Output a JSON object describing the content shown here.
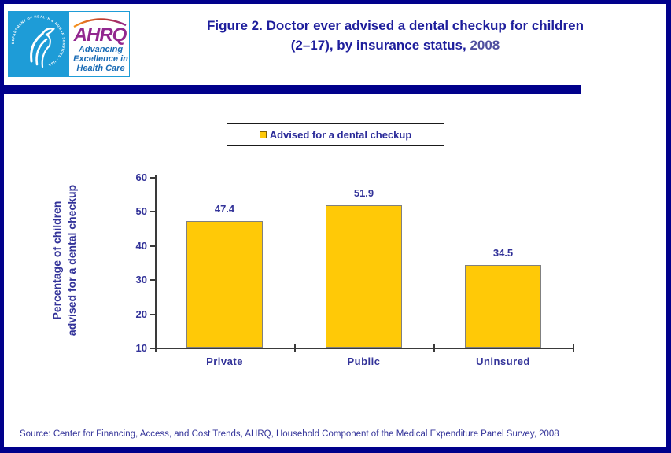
{
  "page": {
    "title_line1": "Figure 2. Doctor ever advised a dental checkup for children",
    "title_line2": "(2–17), by insurance status,",
    "title_year": "2008",
    "source": "Source: Center for Financing, Access, and Cost Trends, AHRQ, Household Component of the Medical Expenditure Panel Survey, 2008"
  },
  "logo": {
    "hhs_seal_ring_text": "DEPARTMENT OF HEALTH & HUMAN SERVICES · USA",
    "ahrq_acronym": "AHRQ",
    "tagline_line1": "Advancing",
    "tagline_line2": "Excellence in",
    "tagline_line3": "Health Care"
  },
  "legend": {
    "label": "Advised for a dental checkup",
    "marker_color": "#FFC907"
  },
  "chart_data": {
    "type": "bar",
    "title": "Figure 2. Doctor ever advised a dental checkup for children (2–17), by insurance status, 2008",
    "categories": [
      "Private",
      "Public",
      "Uninsured"
    ],
    "values": [
      47.4,
      51.9,
      34.5
    ],
    "series_label": "Advised for a dental checkup",
    "xlabel": "",
    "ylabel": "Percentage of children advised for a dental checkup",
    "ylabel_lines": [
      "Percentage of children",
      "advised for a dental checkup"
    ],
    "ylim": [
      10,
      60
    ],
    "yticks": [
      60,
      50,
      40,
      30,
      20,
      10
    ],
    "grid": false,
    "legend_position": "top-center",
    "bar_color": "#FFC907",
    "bar_border_color": "#808080"
  },
  "colors": {
    "page_border": "#00008B",
    "title_navy": "#1E1E9C",
    "year_slate": "#50509E",
    "chart_text": "#333399",
    "bar_fill": "#FFC907",
    "bar_border": "#808080",
    "logo_blue": "#1E9CD7",
    "ahrq_purple": "#92278F",
    "tagline_blue": "#1B6CB5",
    "swoosh_orange": "#F7941D"
  }
}
